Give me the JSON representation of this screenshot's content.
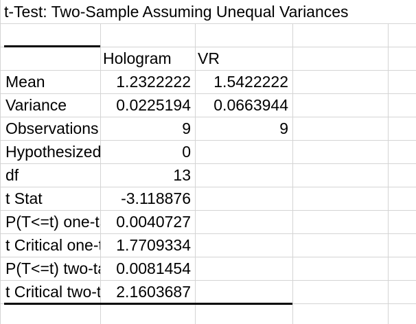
{
  "sheet": {
    "title": "t-Test: Two-Sample Assuming Unequal Variances",
    "headers": [
      "",
      "Hologram",
      "VR"
    ],
    "rows": [
      {
        "label": "Mean",
        "c1": "1.2322222",
        "c2": "1.5422222"
      },
      {
        "label": "Variance",
        "c1": "0.0225194",
        "c2": "0.0663944"
      },
      {
        "label": "Observations",
        "c1": "9",
        "c2": "9"
      },
      {
        "label": "Hypothesized Mean Difference",
        "c1": "0",
        "c2": ""
      },
      {
        "label": "df",
        "c1": "13",
        "c2": ""
      },
      {
        "label": "t Stat",
        "c1": "-3.118876",
        "c2": ""
      },
      {
        "label": "P(T<=t) one-tail",
        "c1": "0.0040727",
        "c2": ""
      },
      {
        "label": "t Critical one-tail",
        "c1": "1.7709334",
        "c2": ""
      },
      {
        "label": "P(T<=t) two-tail",
        "c1": "0.0081454",
        "c2": ""
      },
      {
        "label": "t Critical two-tail",
        "c1": "2.1603687",
        "c2": ""
      }
    ]
  }
}
